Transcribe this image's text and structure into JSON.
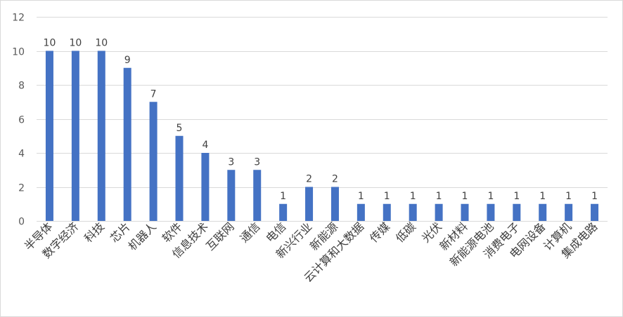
{
  "chart_data": {
    "type": "bar",
    "title": "",
    "xlabel": "",
    "ylabel": "",
    "ylim": [
      0,
      12
    ],
    "yticks": [
      0,
      2,
      4,
      6,
      8,
      10,
      12
    ],
    "grid": true,
    "legend": "none",
    "bar_color": "#4472C4",
    "grid_color": "#d9d9d9",
    "categories": [
      "半导体",
      "数字经济",
      "科技",
      "芯片",
      "机器人",
      "软件",
      "信息技术",
      "互联网",
      "通信",
      "电信",
      "新兴行业",
      "新能源",
      "云计算和大数据",
      "传媒",
      "低碳",
      "光伏",
      "新材料",
      "新能源电池",
      "消费电子",
      "电网设备",
      "计算机",
      "集成电路"
    ],
    "values": [
      10,
      10,
      10,
      9,
      7,
      5,
      4,
      3,
      3,
      1,
      2,
      2,
      1,
      1,
      1,
      1,
      1,
      1,
      1,
      1,
      1,
      1
    ]
  }
}
